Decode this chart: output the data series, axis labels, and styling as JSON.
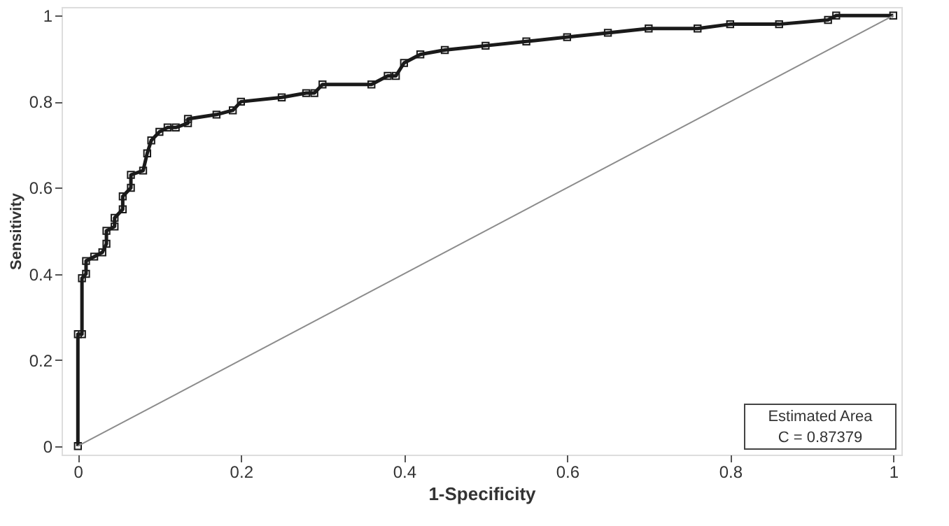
{
  "chart_data": {
    "type": "line",
    "xlabel": "1-Specificity",
    "ylabel": "Sensitivity",
    "xlim": [
      -0.02,
      1.01
    ],
    "ylim": [
      -0.02,
      1.02
    ],
    "xticks": [
      0,
      0.2,
      0.4,
      0.6,
      0.8,
      {
        "value": 1,
        "label": "1"
      }
    ],
    "yticks": [
      0,
      0.2,
      0.4,
      0.6,
      0.8,
      {
        "value": 1,
        "label": "1"
      }
    ],
    "grid": false,
    "series": [
      {
        "marker": "square",
        "color": "#1a1a1a",
        "x": [
          0,
          0,
          0.005,
          0.005,
          0.01,
          0.01,
          0.02,
          0.03,
          0.035,
          0.035,
          0.045,
          0.045,
          0.055,
          0.055,
          0.065,
          0.065,
          0.08,
          0.085,
          0.09,
          0.1,
          0.11,
          0.12,
          0.135,
          0.135,
          0.17,
          0.19,
          0.2,
          0.25,
          0.28,
          0.29,
          0.3,
          0.36,
          0.38,
          0.39,
          0.4,
          0.42,
          0.45,
          0.5,
          0.55,
          0.6,
          0.65,
          0.7,
          0.76,
          0.8,
          0.86,
          0.92,
          0.93,
          1.0
        ],
        "values": [
          0,
          0.26,
          0.26,
          0.39,
          0.4,
          0.43,
          0.44,
          0.45,
          0.47,
          0.5,
          0.51,
          0.53,
          0.55,
          0.58,
          0.6,
          0.63,
          0.64,
          0.68,
          0.71,
          0.73,
          0.74,
          0.74,
          0.75,
          0.76,
          0.77,
          0.78,
          0.8,
          0.81,
          0.82,
          0.82,
          0.84,
          0.84,
          0.86,
          0.86,
          0.89,
          0.91,
          0.92,
          0.93,
          0.94,
          0.95,
          0.96,
          0.97,
          0.97,
          0.98,
          0.98,
          0.99,
          1.0,
          1.0
        ]
      },
      {
        "marker": "none",
        "color": "#8c8c8c",
        "x": [
          0,
          1
        ],
        "values": [
          0,
          1
        ]
      }
    ],
    "annotations": [
      "Estimated Area",
      "C =  0.87379"
    ]
  }
}
